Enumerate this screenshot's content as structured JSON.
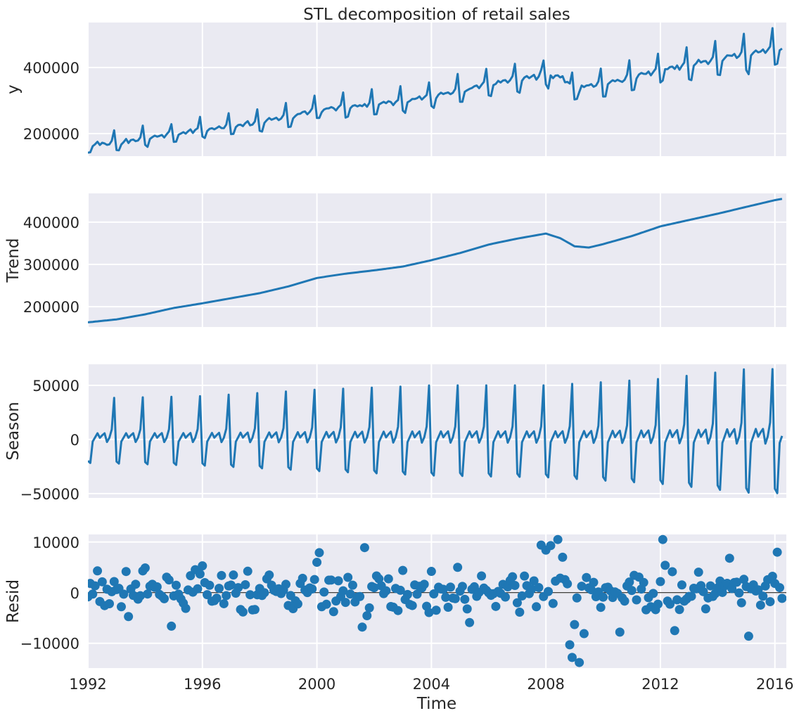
{
  "chart_data": {
    "type": "line",
    "title": "STL decomposition of retail sales",
    "xlabel": "Time",
    "xlim": [
      1992,
      2016.4
    ],
    "x_ticks": [
      1992,
      1996,
      2000,
      2004,
      2008,
      2012,
      2016
    ],
    "x_tick_labels": [
      "1992",
      "1996",
      "2000",
      "2004",
      "2008",
      "2012",
      "2016"
    ],
    "grid": true,
    "line_color": "#1f77b4",
    "background": "#eaeaf2",
    "time_range": {
      "start": 1992.0,
      "end": 2016.25,
      "frequency": "monthly"
    },
    "panels": [
      {
        "key": "y",
        "ylabel": "y",
        "ylim": [
          132000,
          536000
        ],
        "yticks": [
          200000,
          400000
        ],
        "ytick_labels": [
          "200000",
          "400000"
        ],
        "kind": "line"
      },
      {
        "key": "trend",
        "ylabel": "Trend",
        "ylim": [
          152000,
          468000
        ],
        "yticks": [
          200000,
          300000,
          400000
        ],
        "ytick_labels": [
          "200000",
          "300000",
          "400000"
        ],
        "kind": "line"
      },
      {
        "key": "season",
        "ylabel": "Season",
        "ylim": [
          -54000,
          69500
        ],
        "yticks": [
          -50000,
          0,
          50000
        ],
        "ytick_labels": [
          "−50000",
          "0",
          "50000"
        ],
        "kind": "line"
      },
      {
        "key": "resid",
        "ylabel": "Resid",
        "ylim": [
          -14900,
          11500
        ],
        "yticks": [
          -10000,
          0,
          10000
        ],
        "ytick_labels": [
          "−10000",
          "0",
          "10000"
        ],
        "kind": "scatter",
        "zero_line": true
      }
    ],
    "trend_knots": [
      [
        1992,
        163000
      ],
      [
        1993,
        170000
      ],
      [
        1994,
        182000
      ],
      [
        1995,
        197000
      ],
      [
        1996,
        208000
      ],
      [
        1997,
        220000
      ],
      [
        1998,
        232000
      ],
      [
        1999,
        248000
      ],
      [
        2000,
        268000
      ],
      [
        2001,
        278000
      ],
      [
        2002,
        286000
      ],
      [
        2003,
        295000
      ],
      [
        2004,
        310000
      ],
      [
        2005,
        327000
      ],
      [
        2006,
        347000
      ],
      [
        2007,
        361000
      ],
      [
        2008,
        373000
      ],
      [
        2008.5,
        362000
      ],
      [
        2009,
        343000
      ],
      [
        2009.5,
        340000
      ],
      [
        2010,
        348000
      ],
      [
        2011,
        367000
      ],
      [
        2012,
        390000
      ],
      [
        2013,
        405000
      ],
      [
        2014,
        420000
      ],
      [
        2015,
        436000
      ],
      [
        2016,
        452000
      ],
      [
        2016.33,
        456000
      ]
    ],
    "season_monthly_pattern": [
      -0.55,
      -0.6,
      -0.05,
      0.05,
      0.15,
      0.04,
      0.1,
      0.15,
      -0.06,
      0.04,
      0.24,
      1.0
    ],
    "season_dec_peak_by_year": [
      [
        1992,
        38000
      ],
      [
        1996,
        40000
      ],
      [
        2000,
        46000
      ],
      [
        2004,
        50000
      ],
      [
        2008,
        50000
      ],
      [
        2012,
        56000
      ],
      [
        2015,
        65000
      ],
      [
        2016,
        65000
      ]
    ],
    "season_low_ratio_range": [
      0.55,
      0.74
    ],
    "notable_residuals": [
      [
        1993.9,
        4300
      ],
      [
        1996.0,
        5300
      ],
      [
        2000.0,
        6000
      ],
      [
        2000.1,
        7900
      ],
      [
        2001.7,
        8900
      ],
      [
        2001.6,
        -6800
      ],
      [
        2003.0,
        4400
      ],
      [
        2004.0,
        4200
      ],
      [
        2004.9,
        5000
      ],
      [
        2005.3,
        -5900
      ],
      [
        2007.8,
        9400
      ],
      [
        2008.0,
        8400
      ],
      [
        2008.2,
        9300
      ],
      [
        2008.4,
        10500
      ],
      [
        2008.55,
        7000
      ],
      [
        2008.8,
        -10300
      ],
      [
        2008.9,
        -12800
      ],
      [
        2009.0,
        -6300
      ],
      [
        2009.2,
        -13800
      ],
      [
        2009.3,
        -8100
      ],
      [
        2010.6,
        -7800
      ],
      [
        2012.1,
        10500
      ],
      [
        2012.5,
        -7500
      ],
      [
        2012.2,
        5400
      ],
      [
        2014.4,
        6800
      ],
      [
        2015.1,
        -8600
      ],
      [
        2016.1,
        8000
      ]
    ],
    "resid_noise_std": 2300
  }
}
